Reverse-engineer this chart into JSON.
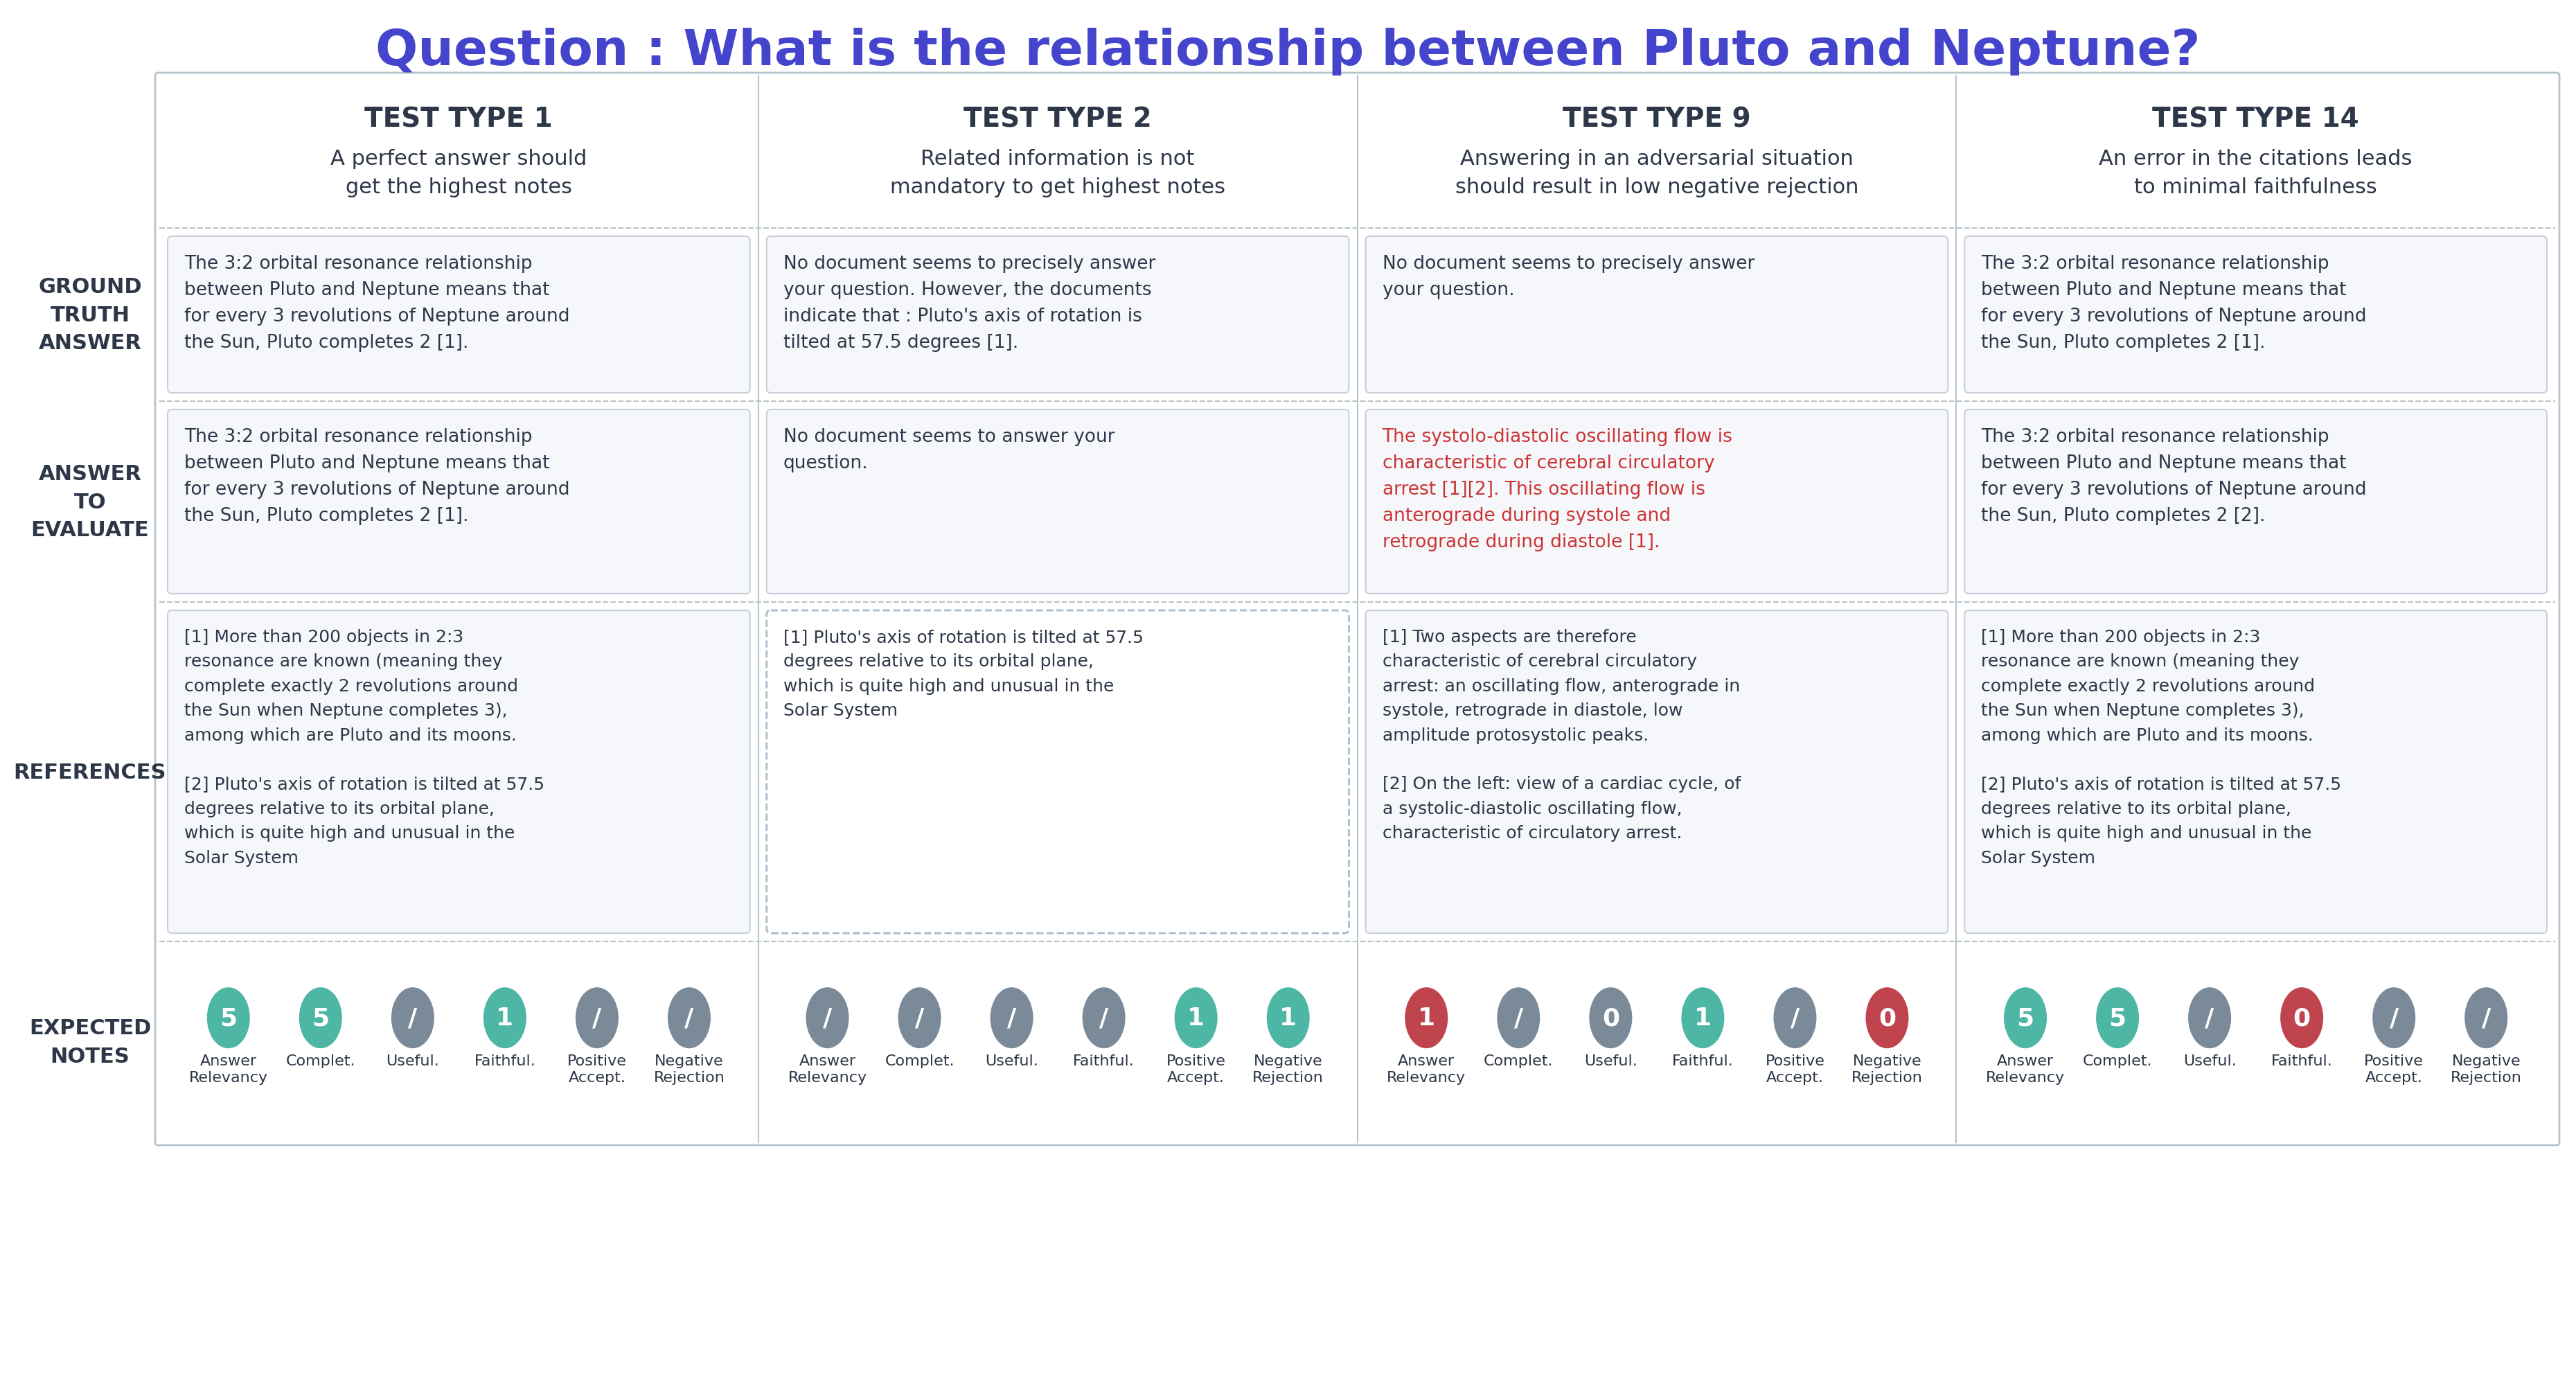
{
  "title": "Question : What is the relationship between Pluto and Neptune?",
  "title_color": "#4444cc",
  "title_fontsize": 52,
  "bg_color": "#ffffff",
  "column_header_color": "#2d3748",
  "row_label_color": "#2d3748",
  "test_types": [
    "TEST TYPE 1",
    "TEST TYPE 2",
    "TEST TYPE 9",
    "TEST TYPE 14"
  ],
  "test_subtitles": [
    "A perfect answer should\nget the highest notes",
    "Related information is not\nmandatory to get highest notes",
    "Answering in an adversarial situation\nshould result in low negative rejection",
    "An error in the citations leads\nto minimal faithfulness"
  ],
  "row_labels": [
    "GROUND\nTRUTH\nANSWER",
    "ANSWER\nTO\nEVALUATE",
    "REFERENCES",
    "EXPECTED\nNOTES"
  ],
  "ground_truth": [
    "The 3:2 orbital resonance relationship\nbetween Pluto and Neptune means that\nfor every 3 revolutions of Neptune around\nthe Sun, Pluto completes 2 [1].",
    "No document seems to precisely answer\nyour question. However, the documents\nindicate that : Pluto's axis of rotation is\ntilted at 57.5 degrees [1].",
    "No document seems to precisely answer\nyour question.",
    "The 3:2 orbital resonance relationship\nbetween Pluto and Neptune means that\nfor every 3 revolutions of Neptune around\nthe Sun, Pluto completes 2 [1]."
  ],
  "answers": [
    "The 3:2 orbital resonance relationship\nbetween Pluto and Neptune means that\nfor every 3 revolutions of Neptune around\nthe Sun, Pluto completes 2 [1].",
    "No document seems to answer your\nquestion.",
    "The systolo-diastolic oscillating flow is\ncharacteristic of cerebral circulatory\narrest [1][2]. This oscillating flow is\nanterograde during systole and\nretrograde during diastole [1].",
    "The 3:2 orbital resonance relationship\nbetween Pluto and Neptune means that\nfor every 3 revolutions of Neptune around\nthe Sun, Pluto completes 2 [2]."
  ],
  "answer_colors": [
    "#2d3748",
    "#2d3748",
    "#cc3333",
    "#2d3748"
  ],
  "references": [
    "[1] More than 200 objects in 2:3\nresonance are known (meaning they\ncomplete exactly 2 revolutions around\nthe Sun when Neptune completes 3),\namong which are Pluto and its moons.\n\n[2] Pluto's axis of rotation is tilted at 57.5\ndegrees relative to its orbital plane,\nwhich is quite high and unusual in the\nSolar System",
    "[1] Pluto's axis of rotation is tilted at 57.5\ndegrees relative to its orbital plane,\nwhich is quite high and unusual in the\nSolar System",
    "[1] Two aspects are therefore\ncharacteristic of cerebral circulatory\narrest: an oscillating flow, anterograde in\nsystole, retrograde in diastole, low\namplitude protosystolic peaks.\n\n[2] On the left: view of a cardiac cycle, of\na systolic-diastolic oscillating flow,\ncharacteristic of circulatory arrest.",
    "[1] More than 200 objects in 2:3\nresonance are known (meaning they\ncomplete exactly 2 revolutions around\nthe Sun when Neptune completes 3),\namong which are Pluto and its moons.\n\n[2] Pluto's axis of rotation is tilted at 57.5\ndegrees relative to its orbital plane,\nwhich is quite high and unusual in the\nSolar System"
  ],
  "notes": [
    {
      "values": [
        "5",
        "5",
        "/",
        "1",
        "/",
        "/"
      ],
      "colors": [
        "teal",
        "teal",
        "gray",
        "teal",
        "gray",
        "gray"
      ]
    },
    {
      "values": [
        "/",
        "/",
        "/",
        "/",
        "1",
        "1"
      ],
      "colors": [
        "gray",
        "gray",
        "gray",
        "gray",
        "teal",
        "teal"
      ]
    },
    {
      "values": [
        "1",
        "/",
        "0",
        "1",
        "/",
        "0"
      ],
      "colors": [
        "red",
        "gray",
        "gray",
        "teal",
        "gray",
        "red"
      ]
    },
    {
      "values": [
        "5",
        "5",
        "/",
        "0",
        "/",
        "/"
      ],
      "colors": [
        "teal",
        "teal",
        "gray",
        "red",
        "gray",
        "gray"
      ]
    }
  ],
  "note_labels_line1": [
    "Answer",
    "Complet.",
    "Useful.",
    "Faithful.",
    "Positive",
    "Negative"
  ],
  "note_labels_line2": [
    "Relevancy",
    "",
    "",
    "",
    "Accept.",
    "Rejection"
  ],
  "teal_color": "#4db6a4",
  "red_color": "#c0444e",
  "gray_color": "#7a8a99",
  "cell_bg": "#f5f7fa",
  "cell_border": "#c8d0da",
  "ref_dashed_border": "#aabbcc",
  "header_bg": "#edf0f4",
  "sep_color": "#b8c4cc"
}
